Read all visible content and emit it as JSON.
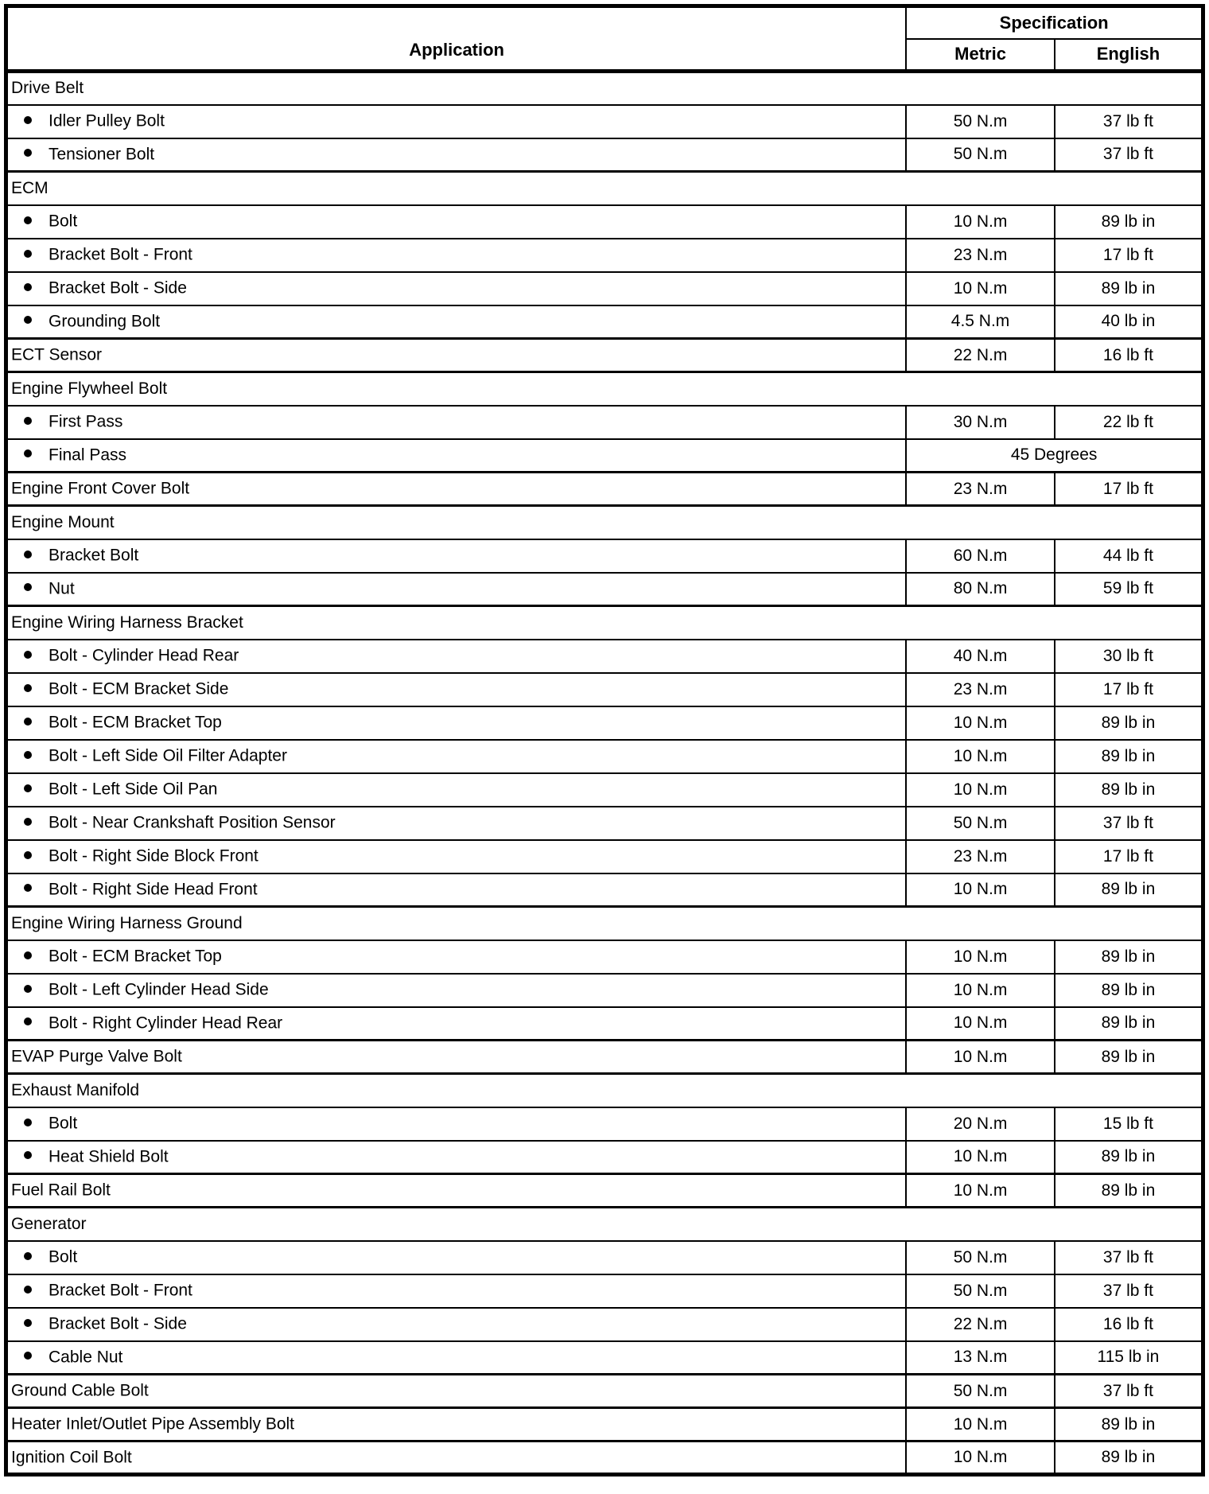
{
  "colors": {
    "border": "#000000",
    "background": "#ffffff",
    "text": "#000000"
  },
  "table": {
    "header": {
      "application": "Application",
      "specification": "Specification",
      "metric": "Metric",
      "english": "English"
    },
    "rows": [
      {
        "type": "section",
        "label": "Drive Belt"
      },
      {
        "type": "bullet",
        "label": "Idler Pulley Bolt",
        "metric": "50 N.m",
        "english": "37 lb ft"
      },
      {
        "type": "bullet",
        "label": "Tensioner Bolt",
        "metric": "50 N.m",
        "english": "37 lb ft"
      },
      {
        "type": "section",
        "label": "ECM"
      },
      {
        "type": "bullet",
        "label": "Bolt",
        "metric": "10 N.m",
        "english": "89 lb in"
      },
      {
        "type": "bullet",
        "label": "Bracket Bolt - Front",
        "metric": "23 N.m",
        "english": "17 lb ft"
      },
      {
        "type": "bullet",
        "label": "Bracket Bolt - Side",
        "metric": "10 N.m",
        "english": "89 lb in"
      },
      {
        "type": "bullet",
        "label": "Grounding Bolt",
        "metric": "4.5 N.m",
        "english": "40 lb in"
      },
      {
        "type": "plain",
        "label": "ECT Sensor",
        "metric": "22 N.m",
        "english": "16 lb ft"
      },
      {
        "type": "section",
        "label": "Engine Flywheel Bolt"
      },
      {
        "type": "bullet",
        "label": "First Pass",
        "metric": "30 N.m",
        "english": "22 lb ft"
      },
      {
        "type": "bullet-merged",
        "label": "Final Pass",
        "value": "45 Degrees"
      },
      {
        "type": "plain",
        "label": "Engine Front Cover Bolt",
        "metric": "23 N.m",
        "english": "17 lb ft"
      },
      {
        "type": "section",
        "label": "Engine Mount"
      },
      {
        "type": "bullet",
        "label": "Bracket Bolt",
        "metric": "60 N.m",
        "english": "44 lb ft"
      },
      {
        "type": "bullet",
        "label": "Nut",
        "metric": "80 N.m",
        "english": "59 lb ft"
      },
      {
        "type": "section",
        "label": "Engine Wiring Harness Bracket"
      },
      {
        "type": "bullet",
        "label": "Bolt - Cylinder Head Rear",
        "metric": "40 N.m",
        "english": "30 lb ft"
      },
      {
        "type": "bullet",
        "label": "Bolt - ECM Bracket Side",
        "metric": "23 N.m",
        "english": "17 lb ft"
      },
      {
        "type": "bullet",
        "label": "Bolt - ECM Bracket Top",
        "metric": "10 N.m",
        "english": "89 lb in"
      },
      {
        "type": "bullet",
        "label": "Bolt - Left Side Oil Filter Adapter",
        "metric": "10 N.m",
        "english": "89 lb in"
      },
      {
        "type": "bullet",
        "label": "Bolt - Left Side Oil Pan",
        "metric": "10 N.m",
        "english": "89 lb in"
      },
      {
        "type": "bullet",
        "label": "Bolt - Near Crankshaft Position Sensor",
        "metric": "50 N.m",
        "english": "37 lb ft"
      },
      {
        "type": "bullet",
        "label": "Bolt - Right Side Block Front",
        "metric": "23 N.m",
        "english": "17 lb ft"
      },
      {
        "type": "bullet",
        "label": "Bolt - Right Side Head Front",
        "metric": "10 N.m",
        "english": "89 lb in"
      },
      {
        "type": "section",
        "label": "Engine Wiring Harness Ground"
      },
      {
        "type": "bullet",
        "label": "Bolt - ECM Bracket Top",
        "metric": "10 N.m",
        "english": "89 lb in"
      },
      {
        "type": "bullet",
        "label": "Bolt - Left Cylinder Head Side",
        "metric": "10 N.m",
        "english": "89 lb in"
      },
      {
        "type": "bullet",
        "label": "Bolt - Right Cylinder Head Rear",
        "metric": "10 N.m",
        "english": "89 lb in"
      },
      {
        "type": "plain",
        "label": "EVAP Purge Valve Bolt",
        "metric": "10 N.m",
        "english": "89 lb in"
      },
      {
        "type": "section",
        "label": "Exhaust Manifold"
      },
      {
        "type": "bullet",
        "label": "Bolt",
        "metric": "20 N.m",
        "english": "15 lb ft"
      },
      {
        "type": "bullet",
        "label": "Heat Shield Bolt",
        "metric": "10 N.m",
        "english": "89 lb in"
      },
      {
        "type": "plain",
        "label": "Fuel Rail Bolt",
        "metric": "10 N.m",
        "english": "89 lb in"
      },
      {
        "type": "section",
        "label": "Generator"
      },
      {
        "type": "bullet",
        "label": "Bolt",
        "metric": "50 N.m",
        "english": "37 lb ft"
      },
      {
        "type": "bullet",
        "label": "Bracket Bolt - Front",
        "metric": "50 N.m",
        "english": "37 lb ft"
      },
      {
        "type": "bullet",
        "label": "Bracket Bolt - Side",
        "metric": "22 N.m",
        "english": "16 lb ft"
      },
      {
        "type": "bullet",
        "label": "Cable Nut",
        "metric": "13 N.m",
        "english": "115 lb in"
      },
      {
        "type": "plain",
        "label": "Ground Cable Bolt",
        "metric": "50 N.m",
        "english": "37 lb ft"
      },
      {
        "type": "plain",
        "label": "Heater Inlet/Outlet Pipe Assembly Bolt",
        "metric": "10 N.m",
        "english": "89 lb in"
      },
      {
        "type": "plain",
        "label": "Ignition Coil Bolt",
        "metric": "10 N.m",
        "english": "89 lb in"
      }
    ]
  }
}
